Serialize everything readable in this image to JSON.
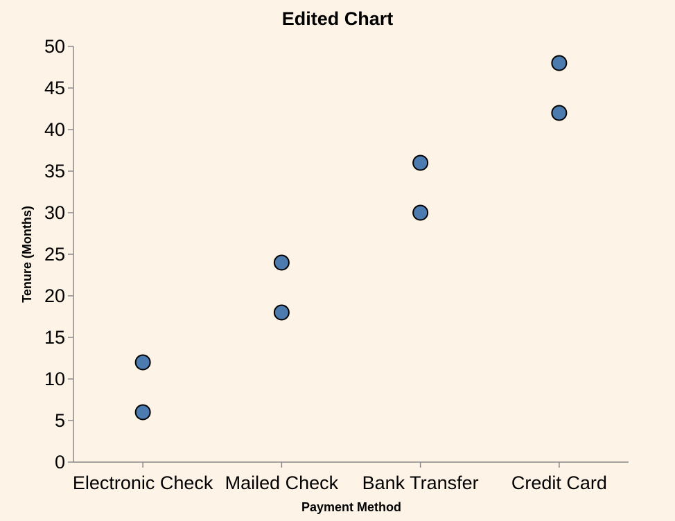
{
  "chart_data": {
    "type": "scatter",
    "title": "Edited Chart",
    "xlabel": "Payment Method",
    "ylabel": "Tenure (Months)",
    "categories": [
      "Electronic Check",
      "Mailed Check",
      "Bank Transfer",
      "Credit Card"
    ],
    "points": [
      {
        "x": "Electronic Check",
        "y": 6
      },
      {
        "x": "Electronic Check",
        "y": 12
      },
      {
        "x": "Mailed Check",
        "y": 18
      },
      {
        "x": "Mailed Check",
        "y": 24
      },
      {
        "x": "Bank Transfer",
        "y": 30
      },
      {
        "x": "Bank Transfer",
        "y": 36
      },
      {
        "x": "Credit Card",
        "y": 42
      },
      {
        "x": "Credit Card",
        "y": 48
      }
    ],
    "ylim": [
      0,
      50
    ],
    "yticks": [
      0,
      5,
      10,
      15,
      20,
      25,
      30,
      35,
      40,
      45,
      50
    ],
    "grid": false,
    "point_color": "#4c7bb0",
    "background": "#fdf3e6"
  }
}
